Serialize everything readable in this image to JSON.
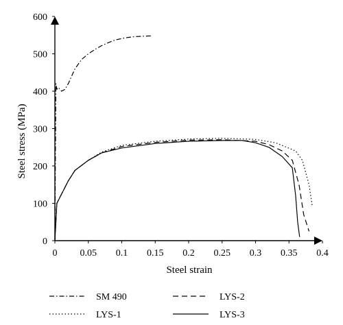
{
  "chart_data": {
    "type": "line",
    "xlabel": "Steel strain",
    "ylabel": "Steel stress (MPa)",
    "xlim": [
      0,
      0.4
    ],
    "ylim": [
      0,
      600
    ],
    "xticks": [
      "0",
      "0.05",
      "0.1",
      "0.15",
      "0.2",
      "0.25",
      "0.3",
      "0.35",
      "0.4"
    ],
    "yticks": [
      "0",
      "100",
      "200",
      "300",
      "400",
      "500",
      "600"
    ],
    "grid": false,
    "legend_position": "bottom",
    "series": [
      {
        "name": "SM 490",
        "dash": "dash-dot",
        "x": [
          0,
          0.0015,
          0.003,
          0.005,
          0.01,
          0.015,
          0.02,
          0.025,
          0.03,
          0.04,
          0.05,
          0.06,
          0.07,
          0.08,
          0.09,
          0.1,
          0.11,
          0.12,
          0.13,
          0.145
        ],
        "y": [
          0,
          420,
          405,
          410,
          400,
          405,
          420,
          440,
          460,
          485,
          500,
          512,
          522,
          530,
          537,
          541,
          544,
          546,
          547,
          548
        ]
      },
      {
        "name": "LYS-1",
        "dash": "dotted",
        "x": [
          0,
          0.003,
          0.01,
          0.02,
          0.03,
          0.05,
          0.07,
          0.1,
          0.15,
          0.2,
          0.25,
          0.3,
          0.33,
          0.36,
          0.37,
          0.38,
          0.385
        ],
        "y": [
          0,
          100,
          125,
          160,
          188,
          215,
          237,
          255,
          266,
          272,
          274,
          271,
          262,
          240,
          215,
          150,
          90
        ]
      },
      {
        "name": "LYS-2",
        "dash": "dashed",
        "x": [
          0,
          0.003,
          0.01,
          0.02,
          0.03,
          0.05,
          0.07,
          0.1,
          0.15,
          0.2,
          0.25,
          0.3,
          0.32,
          0.34,
          0.355,
          0.365,
          0.372,
          0.38
        ],
        "y": [
          0,
          100,
          125,
          160,
          188,
          215,
          235,
          252,
          263,
          269,
          270,
          266,
          257,
          240,
          215,
          150,
          70,
          25
        ]
      },
      {
        "name": "LYS-3",
        "dash": "solid",
        "x": [
          0,
          0.003,
          0.01,
          0.02,
          0.03,
          0.05,
          0.07,
          0.1,
          0.15,
          0.2,
          0.25,
          0.28,
          0.3,
          0.32,
          0.34,
          0.355,
          0.36,
          0.363,
          0.366
        ],
        "y": [
          0,
          100,
          125,
          160,
          188,
          215,
          235,
          248,
          260,
          266,
          268,
          268,
          262,
          250,
          225,
          195,
          120,
          50,
          10
        ]
      }
    ]
  }
}
